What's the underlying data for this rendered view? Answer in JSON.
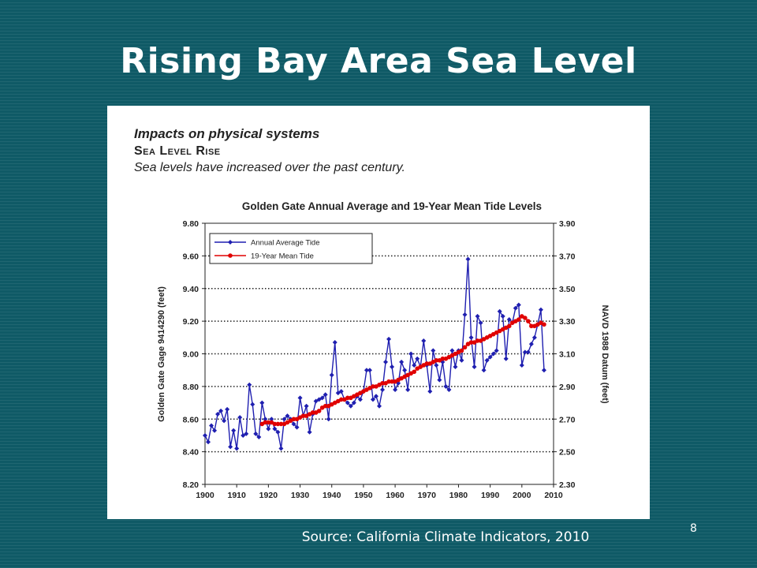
{
  "slide": {
    "title": "Rising Bay Area Sea Level",
    "source": "Source: California Climate Indicators, 2010",
    "page_number": "8"
  },
  "figure_header": {
    "line1": "Impacts on physical systems",
    "line2": "Sea Level Rise",
    "line3": "Sea levels have increased over the past century."
  },
  "colors": {
    "background": "#0f5a66",
    "annual": "#1f1fb0",
    "mean": "#e00000"
  },
  "chart_data": {
    "type": "line",
    "title": "Golden Gate Annual Average and 19-Year Mean Tide Levels",
    "ylabel": "Golden Gate Gage 9414290 (feet)",
    "y2label": "NAVD 1988 Datum (feet)",
    "xlim": [
      1900,
      2010
    ],
    "ylim": [
      8.2,
      9.8
    ],
    "y2lim": [
      2.3,
      3.9
    ],
    "x_ticks": [
      "1900",
      "1910",
      "1920",
      "1930",
      "1940",
      "1950",
      "1960",
      "1970",
      "1980",
      "1990",
      "2000",
      "2010"
    ],
    "y_ticks": [
      "8.20",
      "8.40",
      "8.60",
      "8.80",
      "9.00",
      "9.20",
      "9.40",
      "9.60",
      "9.80"
    ],
    "y2_ticks": [
      "2.30",
      "2.50",
      "2.70",
      "2.90",
      "3.10",
      "3.30",
      "3.50",
      "3.70",
      "3.90"
    ],
    "grid": "horizontal dotted",
    "legend_position": "top-left",
    "series": [
      {
        "name": "Annual Average Tide",
        "color": "#1f1fb0",
        "marker": "diamond",
        "x": [
          1900,
          1901,
          1902,
          1903,
          1904,
          1905,
          1906,
          1907,
          1908,
          1909,
          1910,
          1911,
          1912,
          1913,
          1914,
          1915,
          1916,
          1917,
          1918,
          1919,
          1920,
          1921,
          1922,
          1923,
          1924,
          1925,
          1926,
          1927,
          1928,
          1929,
          1930,
          1931,
          1932,
          1933,
          1934,
          1935,
          1936,
          1937,
          1938,
          1939,
          1940,
          1941,
          1942,
          1943,
          1944,
          1945,
          1946,
          1947,
          1948,
          1949,
          1950,
          1951,
          1952,
          1953,
          1954,
          1955,
          1956,
          1957,
          1958,
          1959,
          1960,
          1961,
          1962,
          1963,
          1964,
          1965,
          1966,
          1967,
          1968,
          1969,
          1970,
          1971,
          1972,
          1973,
          1974,
          1975,
          1976,
          1977,
          1978,
          1979,
          1980,
          1981,
          1982,
          1983,
          1984,
          1985,
          1986,
          1987,
          1988,
          1989,
          1990,
          1991,
          1992,
          1993,
          1994,
          1995,
          1996,
          1997,
          1998,
          1999,
          2000,
          2001,
          2002,
          2003,
          2004,
          2005,
          2006,
          2007
        ],
        "values": [
          8.5,
          8.46,
          8.56,
          8.53,
          8.63,
          8.65,
          8.59,
          8.66,
          8.43,
          8.53,
          8.42,
          8.61,
          8.5,
          8.51,
          8.81,
          8.69,
          8.51,
          8.49,
          8.7,
          8.6,
          8.54,
          8.6,
          8.54,
          8.52,
          8.42,
          8.6,
          8.62,
          8.6,
          8.57,
          8.55,
          8.73,
          8.62,
          8.68,
          8.52,
          8.63,
          8.71,
          8.72,
          8.73,
          8.75,
          8.6,
          8.87,
          9.07,
          8.76,
          8.77,
          8.72,
          8.7,
          8.68,
          8.7,
          8.74,
          8.72,
          8.77,
          8.9,
          8.9,
          8.72,
          8.74,
          8.68,
          8.78,
          8.95,
          9.09,
          8.92,
          8.78,
          8.82,
          8.95,
          8.9,
          8.78,
          9.0,
          8.93,
          8.97,
          8.92,
          9.08,
          8.93,
          8.77,
          9.02,
          8.93,
          8.84,
          8.95,
          8.8,
          8.78,
          9.02,
          8.92,
          9.02,
          8.96,
          9.24,
          9.58,
          9.1,
          8.92,
          9.23,
          9.19,
          8.9,
          8.96,
          8.98,
          9.0,
          9.02,
          9.26,
          9.23,
          8.97,
          9.21,
          9.19,
          9.28,
          9.3,
          8.93,
          9.01,
          9.01,
          9.06,
          9.1,
          9.18,
          9.27,
          8.9
        ]
      },
      {
        "name": "19-Year Mean Tide",
        "color": "#e00000",
        "marker": "circle",
        "x": [
          1918,
          1919,
          1920,
          1921,
          1922,
          1923,
          1924,
          1925,
          1926,
          1927,
          1928,
          1929,
          1930,
          1931,
          1932,
          1933,
          1934,
          1935,
          1936,
          1937,
          1938,
          1939,
          1940,
          1941,
          1942,
          1943,
          1944,
          1945,
          1946,
          1947,
          1948,
          1949,
          1950,
          1951,
          1952,
          1953,
          1954,
          1955,
          1956,
          1957,
          1958,
          1959,
          1960,
          1961,
          1962,
          1963,
          1964,
          1965,
          1966,
          1967,
          1968,
          1969,
          1970,
          1971,
          1972,
          1973,
          1974,
          1975,
          1976,
          1977,
          1978,
          1979,
          1980,
          1981,
          1982,
          1983,
          1984,
          1985,
          1986,
          1987,
          1988,
          1989,
          1990,
          1991,
          1992,
          1993,
          1994,
          1995,
          1996,
          1997,
          1998,
          1999,
          2000,
          2001,
          2002,
          2003,
          2004,
          2005,
          2006,
          2007
        ],
        "values": [
          8.57,
          8.58,
          8.58,
          8.58,
          8.57,
          8.57,
          8.57,
          8.57,
          8.58,
          8.59,
          8.6,
          8.6,
          8.61,
          8.62,
          8.62,
          8.63,
          8.64,
          8.64,
          8.65,
          8.67,
          8.68,
          8.68,
          8.69,
          8.7,
          8.71,
          8.72,
          8.72,
          8.73,
          8.73,
          8.74,
          8.75,
          8.76,
          8.77,
          8.78,
          8.79,
          8.8,
          8.8,
          8.81,
          8.82,
          8.82,
          8.83,
          8.83,
          8.83,
          8.84,
          8.85,
          8.86,
          8.87,
          8.88,
          8.89,
          8.91,
          8.92,
          8.93,
          8.94,
          8.94,
          8.95,
          8.96,
          8.96,
          8.97,
          8.97,
          8.98,
          8.99,
          9.0,
          9.01,
          9.02,
          9.04,
          9.06,
          9.07,
          9.07,
          9.08,
          9.08,
          9.09,
          9.1,
          9.11,
          9.12,
          9.13,
          9.14,
          9.15,
          9.16,
          9.17,
          9.19,
          9.2,
          9.21,
          9.23,
          9.22,
          9.2,
          9.17,
          9.17,
          9.18,
          9.19,
          9.18
        ]
      }
    ]
  }
}
